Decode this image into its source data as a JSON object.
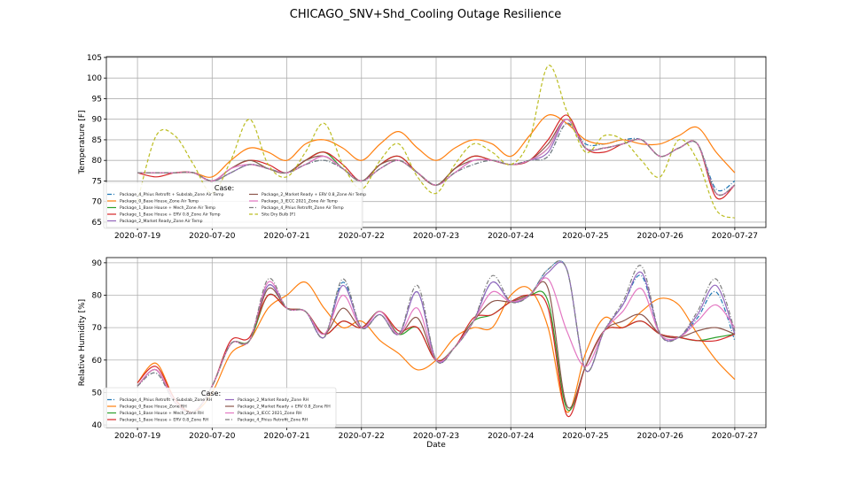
{
  "title": "CHICAGO_SNV+Shd_Cooling Outage Resilience",
  "colors": {
    "blue": "#1f77b4",
    "orange": "#ff7f0e",
    "green": "#2ca02c",
    "red": "#d62728",
    "purple": "#9467bd",
    "brown": "#8c564b",
    "pink": "#e377c2",
    "gray": "#7f7f7f",
    "olive": "#bcbd22"
  },
  "chart_data": [
    {
      "type": "line",
      "xlabel": "",
      "ylabel": "Temperature [F]",
      "xlim": [
        "2020-07-18 14:00",
        "2020-07-27 10:00"
      ],
      "ylim": [
        63.7,
        105.2
      ],
      "yticks": [
        65,
        70,
        75,
        80,
        85,
        90,
        95,
        100,
        105
      ],
      "xticks": [
        "2020-07-19",
        "2020-07-20",
        "2020-07-21",
        "2020-07-22",
        "2020-07-23",
        "2020-07-24",
        "2020-07-25",
        "2020-07-26",
        "2020-07-27"
      ],
      "grid": true,
      "legend": {
        "title": "Case:",
        "placement": "lower-left",
        "columns": 2
      },
      "x_start": "2020-07-19 00:00",
      "x_step_hours": 6,
      "series": [
        {
          "name": "Package_4_Phius Retrofit + Subslab_Zone Air Temp",
          "color": "blue",
          "style": "dashdot",
          "values": [
            77,
            77,
            77,
            77,
            75,
            77,
            79,
            78,
            77,
            79,
            80,
            78,
            75,
            78,
            80,
            77,
            74,
            77,
            79,
            80,
            79,
            80,
            81,
            89,
            84,
            84,
            85,
            85,
            81,
            83,
            84,
            73,
            75
          ]
        },
        {
          "name": "Package_0_Base House_Zone Air Temp",
          "color": "orange",
          "style": "solid",
          "values": [
            77,
            77,
            77,
            77,
            76,
            80,
            83,
            82,
            80,
            84,
            85,
            83,
            80,
            84,
            87,
            83,
            80,
            83,
            85,
            84,
            81,
            86,
            91,
            89,
            85,
            84,
            85,
            84,
            84,
            86,
            88,
            82,
            77
          ]
        },
        {
          "name": "Package_1_Base House + Mech_Zone Air Temp",
          "color": "green",
          "style": "solid",
          "values": [
            77,
            77,
            77,
            77,
            75,
            78,
            80,
            78,
            77,
            80,
            82,
            78,
            75,
            79,
            81,
            77,
            74,
            78,
            81,
            80,
            79,
            80,
            83,
            90,
            83,
            83,
            84,
            85,
            81,
            83,
            84,
            72,
            74
          ]
        },
        {
          "name": "Package_1_Base House + ERV 0.8_Zone Air Temp",
          "color": "red",
          "style": "solid",
          "values": [
            77,
            76,
            77,
            77,
            75,
            78,
            80,
            79,
            77,
            80,
            82,
            79,
            75,
            79,
            81,
            77,
            74,
            78,
            81,
            80,
            79,
            80,
            85,
            91,
            83,
            82,
            84,
            85,
            81,
            83,
            84,
            71,
            74
          ]
        },
        {
          "name": "Package_2_Market Ready_Zone Air Temp",
          "color": "purple",
          "style": "solid",
          "values": [
            77,
            77,
            77,
            77,
            75,
            77,
            79,
            78,
            77,
            79,
            81,
            78,
            75,
            78,
            80,
            77,
            74,
            77,
            80,
            80,
            79,
            80,
            82,
            90,
            83,
            83,
            84,
            85,
            81,
            83,
            84,
            72,
            74
          ]
        },
        {
          "name": "Package_2_Market Ready + ERV 0.8_Zone Air Temp",
          "color": "brown",
          "style": "solid",
          "values": [
            77,
            77,
            77,
            77,
            75,
            78,
            80,
            78,
            77,
            80,
            81,
            78,
            75,
            79,
            80,
            77,
            74,
            78,
            80,
            80,
            79,
            80,
            84,
            90,
            83,
            83,
            84,
            85,
            81,
            83,
            84,
            72,
            74
          ]
        },
        {
          "name": "Package_3_IECC 2021_Zone Air Temp",
          "color": "pink",
          "style": "solid",
          "values": [
            77,
            77,
            77,
            77,
            75,
            78,
            79,
            78,
            77,
            79,
            81,
            78,
            75,
            78,
            80,
            77,
            74,
            77,
            80,
            80,
            79,
            80,
            83,
            90,
            83,
            83,
            84,
            85,
            81,
            83,
            84,
            72,
            74
          ]
        },
        {
          "name": "Package_4_Phius Retrofit_Zone Air Temp",
          "color": "gray",
          "style": "dashdot",
          "values": [
            77,
            77,
            77,
            77,
            75,
            77,
            79,
            78,
            77,
            79,
            80,
            78,
            75,
            78,
            80,
            77,
            74,
            77,
            79,
            80,
            79,
            80,
            81,
            89,
            83,
            83,
            84,
            85,
            81,
            83,
            84,
            72,
            74
          ]
        },
        {
          "name": "Site Dry Bulb [F]",
          "color": "olive",
          "style": "dashed",
          "values": [
            70,
            86,
            86,
            79,
            72,
            80,
            90,
            79,
            76,
            82,
            89,
            79,
            73,
            80,
            84,
            76,
            72,
            79,
            84,
            82,
            79,
            85,
            103,
            92,
            82,
            86,
            85,
            80,
            76,
            85,
            80,
            68,
            66
          ]
        }
      ]
    },
    {
      "type": "line",
      "xlabel": "Date",
      "ylabel": "Relative Humidity [%]",
      "xlim": [
        "2020-07-18 14:00",
        "2020-07-27 10:00"
      ],
      "ylim": [
        39.2,
        91.6
      ],
      "yticks": [
        40,
        50,
        60,
        70,
        80,
        90
      ],
      "xticks": [
        "2020-07-19",
        "2020-07-20",
        "2020-07-21",
        "2020-07-22",
        "2020-07-23",
        "2020-07-24",
        "2020-07-25",
        "2020-07-26",
        "2020-07-27"
      ],
      "grid": true,
      "legend": {
        "title": "Case:",
        "placement": "lower-left",
        "columns": 2
      },
      "x_start": "2020-07-19 00:00",
      "x_step_hours": 6,
      "series": [
        {
          "name": "Package_4_Phius Retrofit + Subslab_Zone RH",
          "color": "blue",
          "style": "dashdot",
          "values": [
            52,
            56,
            47,
            44,
            52,
            65,
            66,
            83,
            76,
            75,
            67,
            84,
            70,
            74,
            68,
            81,
            60,
            64,
            72,
            84,
            78,
            80,
            88,
            88,
            57,
            69,
            77,
            86,
            68,
            67,
            73,
            81,
            66
          ]
        },
        {
          "name": "Package_0_Base House_Zone RH",
          "color": "orange",
          "style": "solid",
          "values": [
            53,
            59,
            48,
            44,
            50,
            62,
            66,
            76,
            80,
            84,
            76,
            70,
            72,
            66,
            62,
            57,
            60,
            67,
            70,
            70,
            80,
            82,
            70,
            44,
            62,
            73,
            70,
            75,
            79,
            77,
            68,
            60,
            54
          ]
        },
        {
          "name": "Package_1_Base House + Mech_Zone RH",
          "color": "green",
          "style": "solid",
          "values": [
            52,
            57,
            47,
            44,
            52,
            65,
            66,
            80,
            76,
            75,
            68,
            72,
            70,
            75,
            68,
            70,
            60,
            64,
            72,
            74,
            78,
            80,
            78,
            45,
            58,
            69,
            70,
            72,
            68,
            67,
            66,
            67,
            68
          ]
        },
        {
          "name": "Package_1_Base House + ERV 0.8_Zone RH",
          "color": "red",
          "style": "solid",
          "values": [
            53,
            58,
            48,
            44,
            52,
            66,
            67,
            80,
            76,
            75,
            68,
            72,
            70,
            75,
            69,
            70,
            60,
            64,
            73,
            74,
            78,
            80,
            76,
            43,
            58,
            69,
            70,
            72,
            68,
            67,
            66,
            66,
            68
          ]
        },
        {
          "name": "Package_2_Market Ready_Zone RH",
          "color": "purple",
          "style": "solid",
          "values": [
            52,
            57,
            47,
            44,
            52,
            65,
            66,
            83,
            76,
            75,
            67,
            83,
            70,
            74,
            68,
            81,
            60,
            64,
            72,
            84,
            78,
            80,
            87,
            88,
            57,
            69,
            77,
            87,
            68,
            67,
            74,
            83,
            68
          ]
        },
        {
          "name": "Package_2_Market Ready + ERV 0.8_Zone RH",
          "color": "brown",
          "style": "solid",
          "values": [
            52,
            57,
            47,
            44,
            52,
            65,
            66,
            82,
            76,
            75,
            68,
            76,
            70,
            75,
            68,
            73,
            60,
            64,
            72,
            78,
            78,
            80,
            82,
            46,
            58,
            69,
            72,
            74,
            68,
            67,
            69,
            70,
            68
          ]
        },
        {
          "name": "Package_3_IECC 2021_Zone RH",
          "color": "pink",
          "style": "solid",
          "values": [
            52,
            57,
            47,
            44,
            52,
            65,
            66,
            84,
            76,
            75,
            68,
            80,
            70,
            75,
            68,
            76,
            60,
            64,
            72,
            81,
            78,
            80,
            85,
            69,
            58,
            69,
            75,
            82,
            68,
            67,
            72,
            77,
            70
          ]
        },
        {
          "name": "Package_4_Phius Retrofit_Zone RH",
          "color": "gray",
          "style": "dashdot",
          "values": [
            52,
            56,
            47,
            44,
            52,
            65,
            66,
            85,
            76,
            75,
            67,
            85,
            70,
            74,
            68,
            83,
            60,
            64,
            72,
            86,
            78,
            80,
            88,
            88,
            57,
            69,
            78,
            89,
            68,
            67,
            75,
            85,
            69
          ]
        }
      ]
    }
  ]
}
